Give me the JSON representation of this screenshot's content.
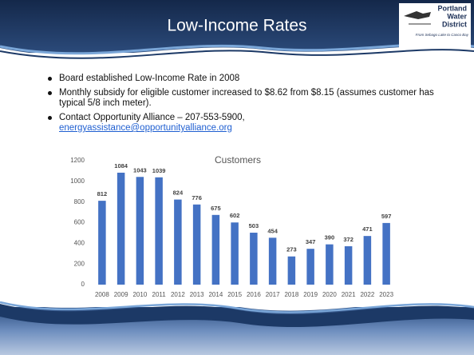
{
  "slide": {
    "title": "Low-Income Rates",
    "logo": {
      "lines": [
        "Portland",
        "Water",
        "District"
      ],
      "tagline": "From Sebago Lake to Casco Bay"
    },
    "bullets": [
      {
        "text": "Board established Low-Income Rate in 2008"
      },
      {
        "text": "Monthly subsidy for eligible customer increased to $8.62 from $8.15 (assumes customer has typical 5/8 inch meter)."
      },
      {
        "text": "Contact Opportunity Alliance – 207-553-5900,",
        "link": "energyassistance@opportunityalliance.org"
      }
    ]
  },
  "chart_data": {
    "type": "bar",
    "title": "Customers",
    "categories": [
      "2008",
      "2009",
      "2010",
      "2011",
      "2012",
      "2013",
      "2014",
      "2015",
      "2016",
      "2017",
      "2018",
      "2019",
      "2020",
      "2021",
      "2022",
      "2023"
    ],
    "values": [
      812,
      1084,
      1043,
      1039,
      824,
      776,
      675,
      602,
      503,
      454,
      273,
      347,
      390,
      372,
      471,
      597
    ],
    "color": "#4472c4",
    "ylim": [
      0,
      1200
    ],
    "yticks": [
      0,
      200,
      400,
      600,
      800,
      1000,
      1200
    ],
    "grid": false
  }
}
